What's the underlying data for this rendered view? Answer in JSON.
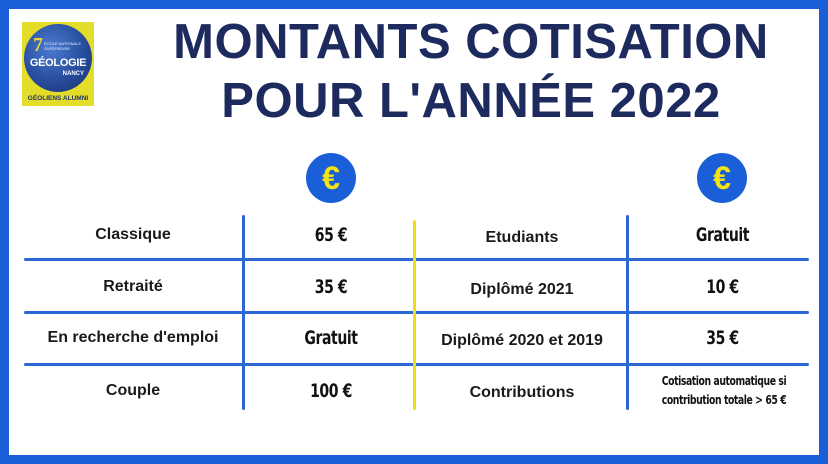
{
  "title": {
    "line1": "MONTANTS COTISATION",
    "line2": "POUR L'ANNÉE 2022"
  },
  "logo": {
    "number": "7",
    "small_text": "ÉCOLE NATIONALE SUPÉRIEURE",
    "main": "GÉOLOGIE",
    "city": "NANCY",
    "caption": "GÉOLIENS ALUMNI"
  },
  "euro_symbol": "€",
  "left_table": [
    {
      "label": "Classique",
      "value": "65 €"
    },
    {
      "label": "Retraité",
      "value": "35 €"
    },
    {
      "label": "En recherche d'emploi",
      "value": "Gratuit"
    },
    {
      "label": "Couple",
      "value": "100 €"
    }
  ],
  "right_table": [
    {
      "label": "Etudiants",
      "value": "Gratuit"
    },
    {
      "label": "Diplômé 2021",
      "value": "10 €"
    },
    {
      "label": "Diplômé 2020 et 2019",
      "value": "35 €"
    },
    {
      "label": "Contributions",
      "value": "Cotisation automatique si contribution totale > 65 €"
    }
  ],
  "colors": {
    "frame": "#1a5fd8",
    "title": "#1c2a5e",
    "euro_badge": "#1a5fd8",
    "euro_symbol": "#f5e414",
    "divider": "#eedd18"
  }
}
